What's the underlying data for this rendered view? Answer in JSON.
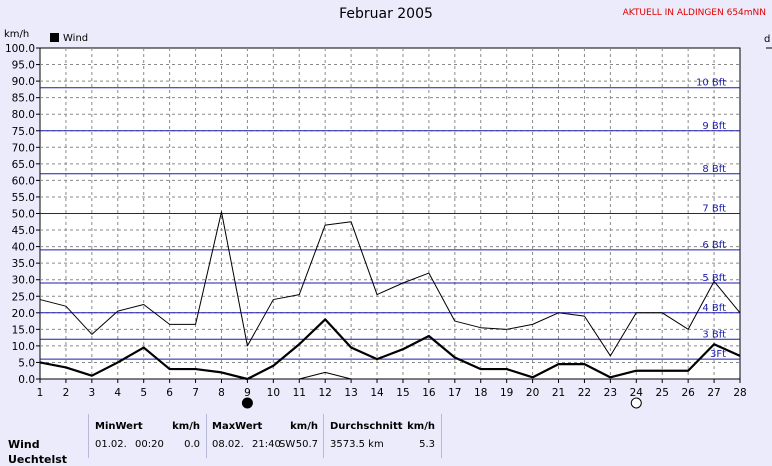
{
  "title": "Februar 2005",
  "aktuell": "AKTUELL IN ALDINGEN 654mNN",
  "chart_data": {
    "type": "line",
    "ylabel": "km/h",
    "right_axis_label": "d",
    "ylim": [
      0,
      100
    ],
    "yticks": [
      "0.0",
      "5.0",
      "10.0",
      "15.0",
      "20.0",
      "25.0",
      "30.0",
      "35.0",
      "40.0",
      "45.0",
      "50.0",
      "55.0",
      "60.0",
      "65.0",
      "70.0",
      "75.0",
      "80.0",
      "85.0",
      "90.0",
      "95.0",
      "100.0"
    ],
    "x": [
      1,
      2,
      3,
      4,
      5,
      6,
      7,
      8,
      9,
      10,
      11,
      12,
      13,
      14,
      15,
      16,
      17,
      18,
      19,
      20,
      21,
      22,
      23,
      24,
      25,
      26,
      27,
      28
    ],
    "grid": true,
    "legend": {
      "label": "Wind",
      "position": "top-left"
    },
    "beaufort_lines": [
      {
        "value": 6,
        "label": "3Ft"
      },
      {
        "value": 12,
        "label": "3 Bft"
      },
      {
        "value": 20,
        "label": "4 Bft"
      },
      {
        "value": 29,
        "label": "5 Bft"
      },
      {
        "value": 39,
        "label": "6 Bft"
      },
      {
        "value": 50,
        "label": "7 Bft"
      },
      {
        "value": 62,
        "label": "8 Bft"
      },
      {
        "value": 75,
        "label": "9 Bft"
      },
      {
        "value": 88,
        "label": "10 Bft"
      }
    ],
    "series": [
      {
        "name": "Wind",
        "style": "thick",
        "values": [
          5,
          3.5,
          1,
          5,
          9.5,
          3,
          3,
          2,
          0,
          4,
          10.5,
          18,
          9.5,
          6,
          9,
          13,
          6.5,
          3,
          3,
          0.5,
          4.5,
          4.5,
          0.5,
          2.5,
          2.5,
          2.5,
          10.5,
          7
        ]
      },
      {
        "style": "thin",
        "values": [
          24,
          22,
          13.5,
          20.5,
          22.5,
          16.5,
          16.5,
          50.5,
          10,
          24,
          25.5,
          46.5,
          47.5,
          25.5,
          29,
          32,
          17.5,
          15.5,
          15,
          16.5,
          20,
          19,
          7,
          20,
          20,
          15,
          29.5,
          20
        ]
      },
      {
        "style": "thin",
        "values": [
          null,
          null,
          null,
          null,
          null,
          null,
          null,
          null,
          null,
          null,
          0,
          2,
          0,
          null,
          null,
          null,
          null,
          null,
          null,
          null,
          null,
          null,
          null,
          null,
          null,
          null,
          null,
          null
        ]
      }
    ],
    "moon_phases": [
      {
        "x": 9,
        "phase": "new"
      },
      {
        "x": 24,
        "phase": "full"
      }
    ]
  },
  "stats": {
    "row_label": "Wind",
    "row_label2": "Uechtelst",
    "min": {
      "header": "MinWert",
      "unit": "km/h",
      "date": "01.02.",
      "time": "00:20",
      "value": "0.0"
    },
    "max": {
      "header": "MaxWert",
      "unit": "km/h",
      "date": "08.02.",
      "time": "21:40",
      "dir": "SW",
      "value": "50.7"
    },
    "avg": {
      "header": "Durchschnitt",
      "unit": "km/h",
      "distance": "3573.5 km",
      "value": "5.3"
    }
  }
}
